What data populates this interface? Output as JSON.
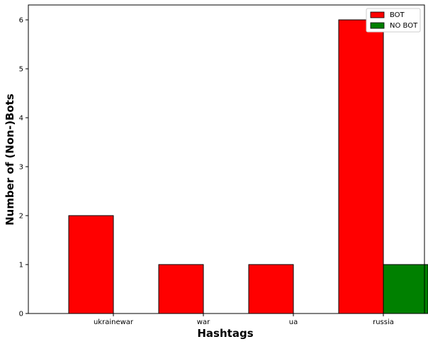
{
  "chart_data": {
    "type": "bar",
    "categories": [
      "ukrainewar",
      "war",
      "ua",
      "russia"
    ],
    "series": [
      {
        "name": "BOT",
        "values": [
          2,
          1,
          1,
          6
        ],
        "color": "#ff0000"
      },
      {
        "name": "NO BOT",
        "values": [
          0,
          0,
          0,
          1
        ],
        "color": "#008000"
      }
    ],
    "xlabel": "Hashtags",
    "ylabel": "Number of (Non-)Bots",
    "ylim": [
      0,
      6.3
    ],
    "yticks": [
      0,
      1,
      2,
      3,
      4,
      5,
      6
    ],
    "grid": false,
    "legend": "top-right"
  }
}
